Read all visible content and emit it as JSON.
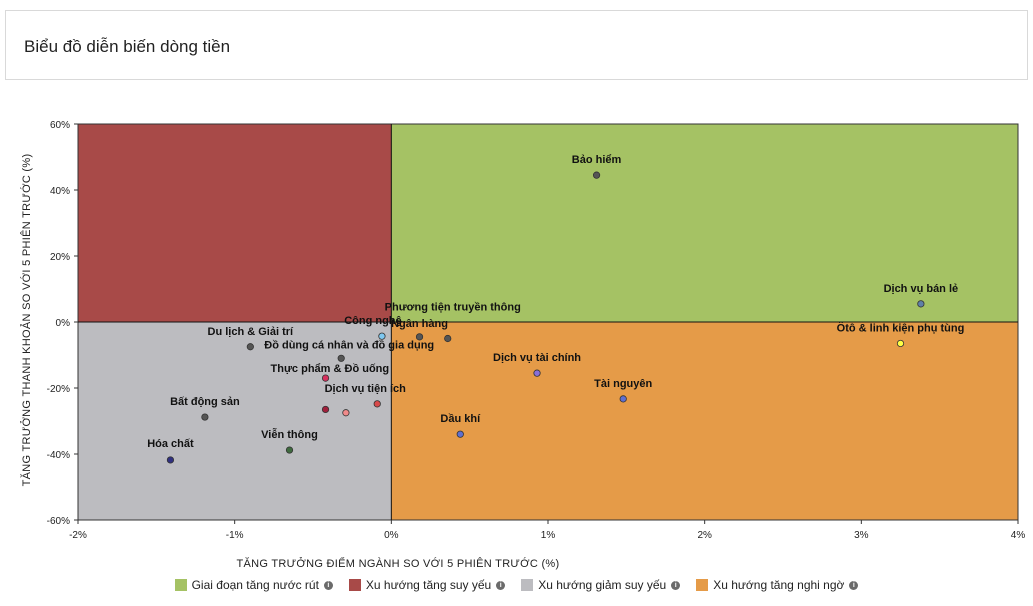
{
  "header": {
    "title": "Biểu đồ diễn biến dòng tiền"
  },
  "chart_data": {
    "type": "scatter",
    "xlabel": "TĂNG TRƯỞNG ĐIỂM NGÀNH SO VỚI 5 PHIÊN TRƯỚC (%)",
    "ylabel": "TĂNG TRƯỞNG THANH KHOẢN SO VỚI 5 PHIÊN TRƯỚC (%)",
    "xlim": [
      -2,
      4
    ],
    "ylim": [
      -60,
      60
    ],
    "x_ticks": [
      -2,
      -1,
      0,
      1,
      2,
      3,
      4
    ],
    "y_ticks": [
      -60,
      -40,
      -20,
      0,
      20,
      40,
      60
    ],
    "x_tick_labels": [
      "-2%",
      "-1%",
      "0%",
      "1%",
      "2%",
      "3%",
      "4%"
    ],
    "y_tick_labels": [
      "-60%",
      "-40%",
      "-20%",
      "0%",
      "20%",
      "40%",
      "60%"
    ],
    "grid": false,
    "legend_position": "bottom",
    "quadrants": [
      {
        "name": "Giai đoạn tăng nước rút",
        "color": "#a5c264",
        "region": "x>0,y>0"
      },
      {
        "name": "Xu hướng tăng suy yếu",
        "color": "#a84a48",
        "region": "x<0,y>0"
      },
      {
        "name": "Xu hướng giảm suy yếu",
        "color": "#bcbcc0",
        "region": "x<0,y<0"
      },
      {
        "name": "Xu hướng tăng nghi ngờ",
        "color": "#e59b48",
        "region": "x>0,y<0"
      }
    ],
    "points": [
      {
        "label": "Bảo hiểm",
        "x": 1.31,
        "y": 44.5,
        "color": "#555555",
        "anchor": "middle",
        "dx": 0,
        "dy": -12
      },
      {
        "label": "Dịch vụ bán lẻ",
        "x": 3.38,
        "y": 5.5,
        "color": "#5f7fa8",
        "anchor": "middle",
        "dx": 0,
        "dy": -12
      },
      {
        "label": "Ôtô & linh kiện phụ tùng",
        "x": 3.25,
        "y": -6.5,
        "color": "#ffff44",
        "anchor": "middle",
        "dx": 0,
        "dy": -12
      },
      {
        "label": "Phương tiện truyền thông",
        "x": 0.36,
        "y": -5.0,
        "color": "#555555",
        "anchor": "middle",
        "dx": 5,
        "dy": -28
      },
      {
        "label": "Ngân hàng",
        "x": 0.18,
        "y": -4.5,
        "color": "#555555",
        "anchor": "middle",
        "dx": 0,
        "dy": -10
      },
      {
        "label": "Công nghệ",
        "x": -0.06,
        "y": -4.3,
        "color": "#7ec8f0",
        "anchor": "middle",
        "dx": -9,
        "dy": -12
      },
      {
        "label": "Du lịch & Giải trí",
        "x": -0.9,
        "y": -7.5,
        "color": "#555555",
        "anchor": "middle",
        "dx": 0,
        "dy": -12
      },
      {
        "label": "Đồ dùng cá nhân và đồ gia dụng",
        "x": -0.32,
        "y": -11.0,
        "color": "#555555",
        "anchor": "middle",
        "dx": 8,
        "dy": -10
      },
      {
        "label": "Dịch vụ tài chính",
        "x": 0.93,
        "y": -15.5,
        "color": "#8a6fd8",
        "anchor": "middle",
        "dx": 0,
        "dy": -12
      },
      {
        "label": "Thực phẩm & Đồ uống",
        "x": -0.42,
        "y": -17.0,
        "color": "#d6305e",
        "anchor": "start",
        "dx": -55,
        "dy": -6
      },
      {
        "label": "Tài nguyên",
        "x": 1.48,
        "y": -23.3,
        "color": "#5f6fd0",
        "anchor": "middle",
        "dx": 0,
        "dy": -12
      },
      {
        "label": "Dịch vụ tiện ích",
        "x": -0.09,
        "y": -24.8,
        "color": "#d84a4a",
        "anchor": "middle",
        "dx": -12,
        "dy": -12
      },
      {
        "label": "Bất động sản",
        "x": -1.19,
        "y": -28.8,
        "color": "#555555",
        "anchor": "middle",
        "dx": 0,
        "dy": -12
      },
      {
        "label": "",
        "x": -0.42,
        "y": -26.5,
        "color": "#a0203c"
      },
      {
        "label": "",
        "x": -0.29,
        "y": -27.5,
        "color": "#f08a8a"
      },
      {
        "label": "Dầu khí",
        "x": 0.44,
        "y": -34.0,
        "color": "#5f6fd0",
        "anchor": "middle",
        "dx": 0,
        "dy": -12
      },
      {
        "label": "Viễn thông",
        "x": -0.65,
        "y": -38.8,
        "color": "#3f6a3f",
        "anchor": "middle",
        "dx": 0,
        "dy": -12
      },
      {
        "label": "Hóa chất",
        "x": -1.41,
        "y": -41.8,
        "color": "#303080",
        "anchor": "middle",
        "dx": 0,
        "dy": -13
      }
    ]
  }
}
